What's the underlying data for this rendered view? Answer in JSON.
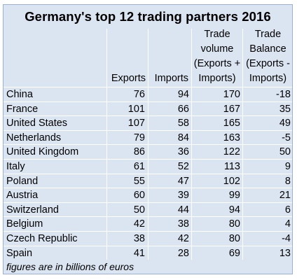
{
  "chart_data": {
    "type": "table",
    "title": "Germany's top 12 trading partners 2016",
    "columns": [
      {
        "key": "country",
        "label": ""
      },
      {
        "key": "exports",
        "label": "Exports"
      },
      {
        "key": "imports",
        "label": "Imports"
      },
      {
        "key": "volume",
        "label_lines": [
          "Trade",
          "volume",
          "(Exports +",
          "Imports)"
        ]
      },
      {
        "key": "balance",
        "label_lines": [
          "Trade",
          "Balance",
          "(Exports -",
          "Imports)"
        ]
      }
    ],
    "rows": [
      {
        "country": "China",
        "exports": 76,
        "imports": 94,
        "volume": 170,
        "balance": -18
      },
      {
        "country": "France",
        "exports": 101,
        "imports": 66,
        "volume": 167,
        "balance": 35
      },
      {
        "country": "United States",
        "exports": 107,
        "imports": 58,
        "volume": 165,
        "balance": 49
      },
      {
        "country": "Netherlands",
        "exports": 79,
        "imports": 84,
        "volume": 163,
        "balance": -5
      },
      {
        "country": "United Kingdom",
        "exports": 86,
        "imports": 36,
        "volume": 122,
        "balance": 50
      },
      {
        "country": "Italy",
        "exports": 61,
        "imports": 52,
        "volume": 113,
        "balance": 9
      },
      {
        "country": "Poland",
        "exports": 55,
        "imports": 47,
        "volume": 102,
        "balance": 8
      },
      {
        "country": "Austria",
        "exports": 60,
        "imports": 39,
        "volume": 99,
        "balance": 21
      },
      {
        "country": "Switzerland",
        "exports": 50,
        "imports": 44,
        "volume": 94,
        "balance": 6
      },
      {
        "country": "Belgium",
        "exports": 42,
        "imports": 38,
        "volume": 80,
        "balance": 4
      },
      {
        "country": "Czech Republic",
        "exports": 38,
        "imports": 42,
        "volume": 80,
        "balance": -4
      },
      {
        "country": "Spain",
        "exports": 41,
        "imports": 28,
        "volume": 69,
        "balance": 13
      }
    ],
    "footnote": "figures are in billions of euros"
  },
  "colors": {
    "background": "#dbe5f1",
    "border": "#9bb1cf",
    "gridlines": "#ffffff"
  }
}
